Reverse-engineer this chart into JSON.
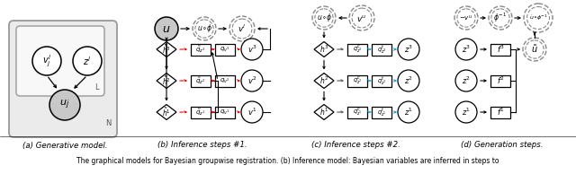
{
  "figure_width": 6.4,
  "figure_height": 1.94,
  "dpi": 100,
  "bg_color": "#ffffff",
  "caption_parts": [
    "(a) Generative model.",
    "(b) Inference steps #1.",
    "(c) Inference steps #2.",
    "(d) Generation steps."
  ],
  "bottom_text": "The graphical models for Bayesian groupwise registration. (b) Inference model: Bayesian variables are inferred in steps to"
}
